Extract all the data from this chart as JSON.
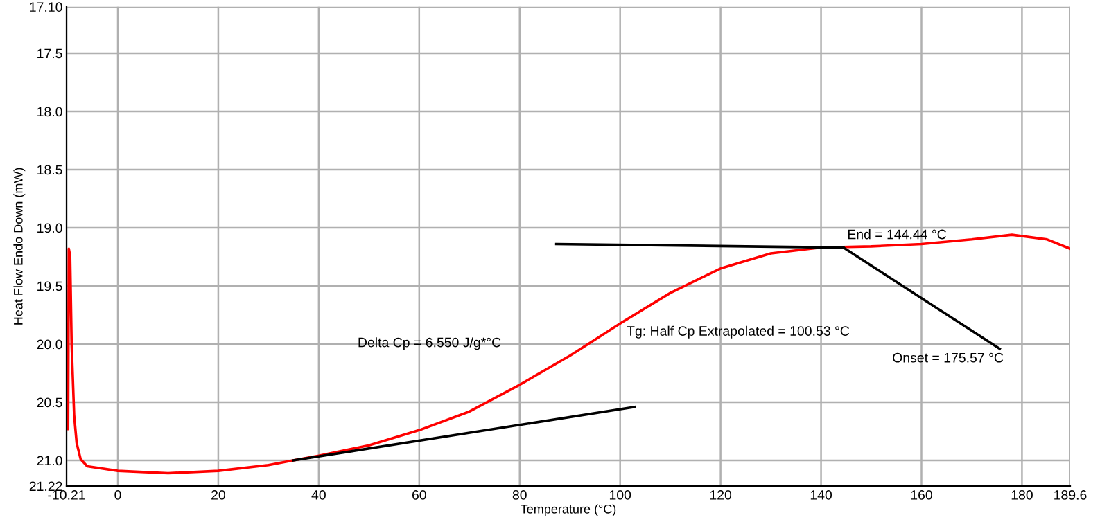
{
  "chart_data": {
    "type": "line",
    "xlabel": "Temperature (°C)",
    "ylabel": "Heat Flow Endo Down (mW)",
    "xlim": [
      -10.21,
      189.6
    ],
    "ylim": [
      21.22,
      17.1
    ],
    "xticks": [
      -10.21,
      0,
      20,
      40,
      60,
      80,
      100,
      120,
      140,
      160,
      180,
      189.6
    ],
    "yticks": [
      {
        "value": 17.1,
        "label": "17.10"
      },
      {
        "value": 17.5,
        "label": "17.5"
      },
      {
        "value": 18.0,
        "label": "18.0"
      },
      {
        "value": 18.5,
        "label": "18.5"
      },
      {
        "value": 19.0,
        "label": "19.0"
      },
      {
        "value": 19.5,
        "label": "19.5"
      },
      {
        "value": 20.0,
        "label": "20.0"
      },
      {
        "value": 20.5,
        "label": "20.5"
      },
      {
        "value": 21.0,
        "label": "21.0"
      },
      {
        "value": 21.22,
        "label": "21.22"
      }
    ],
    "grid": true,
    "series": [
      {
        "color": "#ff0000",
        "x": [
          -9.9,
          -9.76,
          -9.5,
          -9.2,
          -8.7,
          -8.2,
          -7.4,
          -6.1,
          0,
          10,
          20,
          30,
          34.9,
          40,
          50,
          60,
          70,
          80,
          90,
          100.5,
          110,
          120,
          130,
          140,
          150,
          160,
          170,
          178,
          185,
          189.6
        ],
        "values": [
          20.73,
          19.18,
          19.24,
          20.0,
          20.61,
          20.85,
          20.99,
          21.05,
          21.09,
          21.11,
          21.09,
          21.04,
          21.0,
          20.96,
          20.87,
          20.74,
          20.58,
          20.35,
          20.1,
          19.81,
          19.56,
          19.35,
          19.22,
          19.17,
          19.16,
          19.14,
          19.1,
          19.06,
          19.1,
          19.18
        ]
      },
      {
        "color": "#000000",
        "x": [
          34.9,
          102.9
        ],
        "values": [
          21.0,
          20.54
        ]
      },
      {
        "color": "#000000",
        "x": [
          87.3,
          144.44
        ],
        "values": [
          19.14,
          19.17
        ]
      },
      {
        "color": "#000000",
        "x": [
          144.44,
          175.57
        ],
        "values": [
          19.17,
          20.04
        ]
      }
    ],
    "annotations": [
      "Delta Cp = 6.550 J/g*°C",
      {
        "text": "Tg: Half Cp Extrapolated = 100.53 °C",
        "x": 100.53,
        "y": 19.81
      },
      {
        "text": "End = 144.44 °C",
        "x": 144.44,
        "y": 19.17
      },
      {
        "text": "Onset = 175.57 °C",
        "x": 175.57,
        "y": 20.04
      }
    ]
  }
}
